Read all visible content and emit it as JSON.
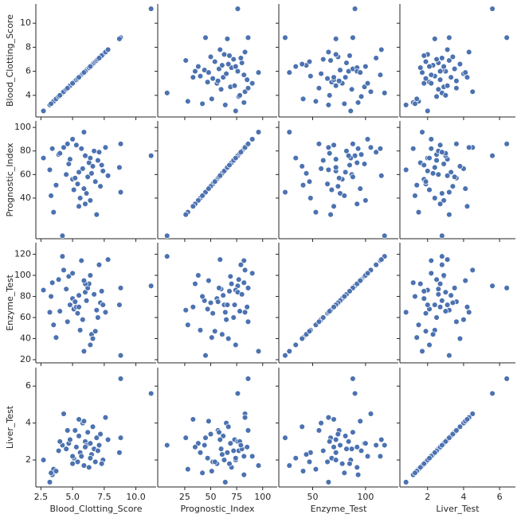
{
  "chart_data": {
    "type": "pairplot",
    "color": "#4c72b0",
    "variables": [
      {
        "name": "Blood_Clotting_Score",
        "values": [
          11.2,
          8.8,
          2.7,
          3.2,
          3.4,
          3.5,
          3.7,
          3.9,
          4.2,
          4.3,
          4.5,
          4.7,
          4.8,
          5.0,
          5.1,
          5.2,
          5.3,
          5.4,
          5.5,
          5.6,
          5.7,
          5.8,
          5.9,
          6.0,
          6.1,
          6.2,
          6.3,
          6.4,
          6.5,
          6.6,
          6.7,
          6.8,
          6.9,
          7.0,
          7.2,
          7.4,
          7.6,
          7.8,
          8.8,
          8.7,
          3.3,
          4.0,
          5.0,
          6.0,
          7.3,
          4.6,
          5.9,
          6.4,
          5.5,
          7.1
        ],
        "xlim": [
          2.1,
          11.6
        ],
        "xticks": [
          2.5,
          {
            "value": 5,
            "label": "5.0"
          },
          7.5,
          {
            "value": 10,
            "label": "10.0"
          }
        ],
        "ylim": [
          2.2,
          11.6
        ],
        "yticks": [
          4,
          6,
          8,
          10
        ]
      },
      {
        "name": "Prognostic_Index",
        "values": [
          76,
          86,
          74,
          64,
          82,
          28,
          51,
          77,
          8,
          83,
          60,
          69,
          73,
          56,
          47,
          57,
          85,
          52,
          62,
          40,
          82,
          65,
          96,
          76,
          44,
          58,
          70,
          38,
          61,
          67,
          80,
          54,
          26,
          72,
          50,
          63,
          83,
          59,
          45,
          66,
          42,
          78,
          90,
          35,
          68,
          86,
          48,
          74,
          33,
          79
        ],
        "xlim": [
          -1,
          114
        ],
        "xticks": [
          25,
          50,
          75,
          100
        ],
        "ylim": [
          5.5,
          105.5
        ],
        "yticks": [
          40,
          60,
          80,
          100
        ]
      },
      {
        "name": "Enzyme_Test",
        "values": [
          90,
          88,
          86,
          65,
          93,
          53,
          41,
          96,
          118,
          105,
          87,
          99,
          72,
          78,
          68,
          75,
          70,
          64,
          81,
          48,
          114,
          58,
          28,
          84,
          76,
          88,
          92,
          100,
          44,
          40,
          82,
          47,
          67,
          60,
          74,
          72,
          65,
          115,
          24,
          72,
          80,
          66,
          102,
          92,
          85,
          56,
          95,
          34,
          70,
          110
        ],
        "xlim": [
          18,
          131
        ],
        "xticks": [
          50,
          100
        ],
        "ylim": [
          17,
          131
        ],
        "yticks": [
          20,
          40,
          60,
          80,
          100,
          120
        ]
      },
      {
        "name": "Liver_Test",
        "values": [
          5.6,
          6.4,
          2.0,
          0.8,
          1.2,
          1.5,
          1.4,
          2.5,
          2.8,
          4.5,
          2.6,
          2.9,
          3.1,
          1.8,
          2.1,
          3.6,
          2.7,
          1.9,
          3.3,
          2.4,
          2.2,
          4.0,
          1.7,
          3.0,
          2.8,
          3.5,
          1.6,
          2.9,
          2.3,
          3.8,
          2.6,
          1.9,
          3.2,
          2.5,
          3.4,
          2.0,
          4.3,
          3.1,
          3.2,
          2.4,
          1.3,
          3.0,
          2.2,
          2.7,
          1.8,
          3.6,
          4.1,
          2.1,
          4.2,
          2.8
        ],
        "xlim": [
          0.46,
          6.88
        ],
        "xticks": [
          2,
          4,
          6
        ],
        "ylim": [
          0.54,
          7.0
        ],
        "yticks": [
          2,
          4,
          6
        ]
      }
    ]
  }
}
